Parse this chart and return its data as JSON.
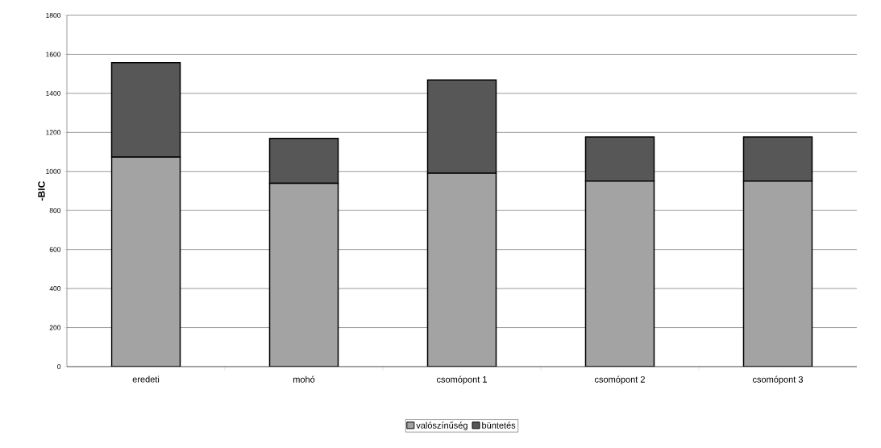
{
  "chart_data": {
    "type": "bar",
    "stacked": true,
    "ylabel": "-BIC",
    "categories": [
      "eredeti",
      "mohó",
      "csomópont 1",
      "csomópont 2",
      "csomópont 3"
    ],
    "series": [
      {
        "name": "valószínűség",
        "color": "#a3a3a3",
        "values": [
          1073,
          939,
          991,
          951,
          951
        ]
      },
      {
        "name": "büntetés",
        "color": "#575757",
        "values": [
          484,
          230,
          478,
          226,
          226
        ]
      }
    ],
    "ylim": [
      0,
      1800
    ],
    "yticks": [
      0,
      200,
      400,
      600,
      800,
      1000,
      1200,
      1400,
      1600,
      1800
    ],
    "grid": "y",
    "legend": "bottom"
  }
}
